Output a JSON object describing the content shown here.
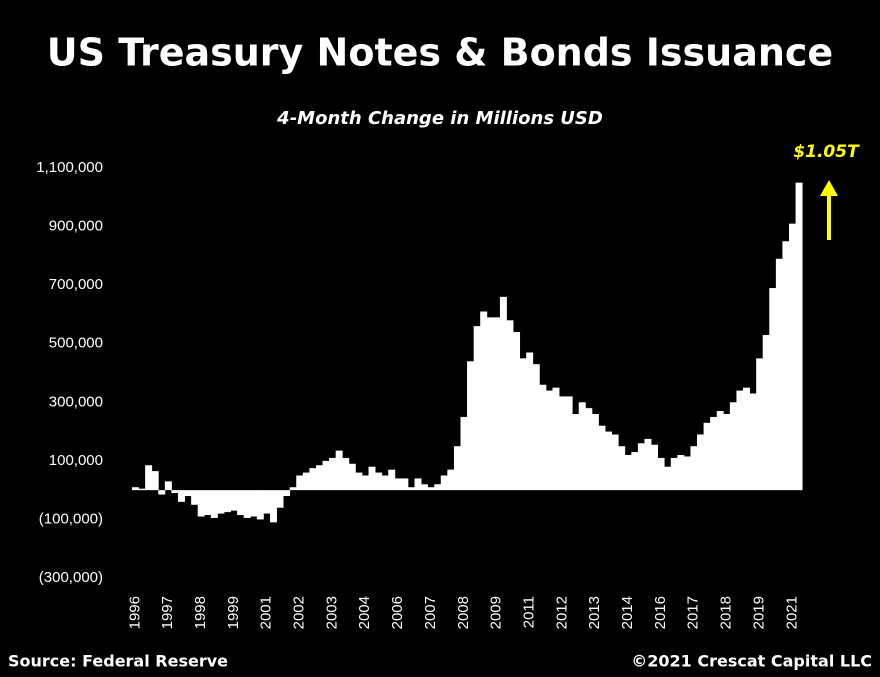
{
  "chart_data": {
    "type": "bar",
    "title": "US Treasury Notes & Bonds Issuance",
    "subtitle": "4-Month Change in Millions USD",
    "annotation": "$1.05T",
    "source": "Source: Federal Reserve",
    "credit": "©2021 Crescat Capital LLC",
    "color": "#ffffff",
    "annotation_color": "#ffff00",
    "categories": [
      "1996",
      null,
      null,
      null,
      null,
      "1997",
      null,
      null,
      null,
      null,
      "1998",
      null,
      null,
      null,
      null,
      "1999",
      null,
      null,
      null,
      null,
      "2001",
      null,
      null,
      null,
      null,
      "2002",
      null,
      null,
      null,
      null,
      "2003",
      null,
      null,
      null,
      null,
      "2004",
      null,
      null,
      null,
      null,
      "2006",
      null,
      null,
      null,
      null,
      "2007",
      null,
      null,
      null,
      null,
      "2008",
      null,
      null,
      null,
      null,
      "2009",
      null,
      null,
      null,
      null,
      "2011",
      null,
      null,
      null,
      null,
      "2012",
      null,
      null,
      null,
      null,
      "2013",
      null,
      null,
      null,
      null,
      "2014",
      null,
      null,
      null,
      null,
      "2016",
      null,
      null,
      null,
      null,
      "2017",
      null,
      null,
      null,
      null,
      "2018",
      null,
      null,
      null,
      null,
      "2019",
      null,
      null,
      null,
      null,
      "2021",
      null
    ],
    "values": [
      10000,
      5000,
      85000,
      65000,
      -15000,
      30000,
      -10000,
      -40000,
      -20000,
      -50000,
      -90000,
      -85000,
      -95000,
      -80000,
      -75000,
      -70000,
      -85000,
      -95000,
      -90000,
      -100000,
      -80000,
      -110000,
      -60000,
      -20000,
      10000,
      50000,
      60000,
      75000,
      85000,
      100000,
      110000,
      135000,
      110000,
      90000,
      60000,
      50000,
      80000,
      60000,
      50000,
      70000,
      40000,
      40000,
      10000,
      40000,
      20000,
      10000,
      20000,
      50000,
      70000,
      150000,
      250000,
      440000,
      560000,
      610000,
      590000,
      590000,
      660000,
      580000,
      540000,
      450000,
      470000,
      430000,
      360000,
      340000,
      350000,
      320000,
      320000,
      260000,
      300000,
      280000,
      260000,
      220000,
      200000,
      190000,
      150000,
      120000,
      130000,
      160000,
      175000,
      155000,
      110000,
      80000,
      110000,
      120000,
      115000,
      150000,
      190000,
      230000,
      250000,
      270000,
      260000,
      300000,
      340000,
      350000,
      330000,
      450000,
      530000,
      690000,
      790000,
      850000,
      910000,
      1050000
    ],
    "ylim": [
      -300000,
      1100000
    ],
    "yticks": [
      {
        "value": 1100000,
        "label": "1,100,000"
      },
      {
        "value": 900000,
        "label": "900,000"
      },
      {
        "value": 700000,
        "label": "700,000"
      },
      {
        "value": 500000,
        "label": "500,000"
      },
      {
        "value": 300000,
        "label": "300,000"
      },
      {
        "value": 100000,
        "label": "100,000"
      },
      {
        "value": -100000,
        "label": "(100,000)"
      },
      {
        "value": -300000,
        "label": "(300,000)"
      }
    ],
    "grid": false
  }
}
